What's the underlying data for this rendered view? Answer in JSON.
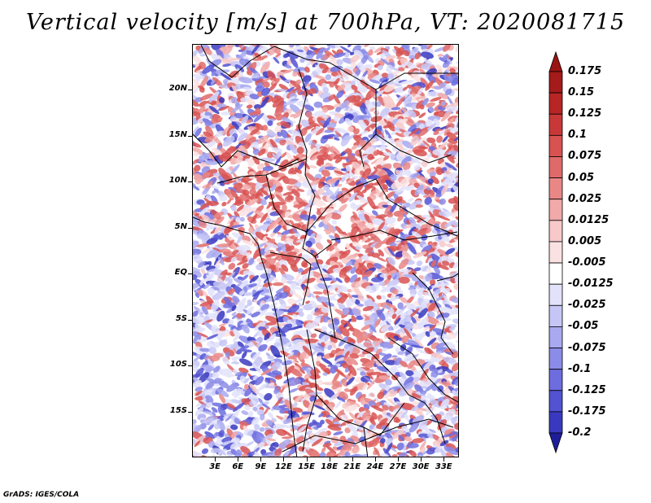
{
  "title": "Vertical velocity [m/s] at 700hPa, VT: 2020081715",
  "footer": "GrADS: IGES/COLA",
  "map": {
    "lon_range": [
      0,
      35
    ],
    "lat_range": [
      -20,
      25
    ],
    "y_ticks": [
      {
        "label": "20N",
        "lat": 20
      },
      {
        "label": "15N",
        "lat": 15
      },
      {
        "label": "10N",
        "lat": 10
      },
      {
        "label": "5N",
        "lat": 5
      },
      {
        "label": "EQ",
        "lat": 0
      },
      {
        "label": "5S",
        "lat": -5
      },
      {
        "label": "10S",
        "lat": -10
      },
      {
        "label": "15S",
        "lat": -15
      }
    ],
    "x_ticks": [
      {
        "label": "3E",
        "lon": 3
      },
      {
        "label": "6E",
        "lon": 6
      },
      {
        "label": "9E",
        "lon": 9
      },
      {
        "label": "12E",
        "lon": 12
      },
      {
        "label": "15E",
        "lon": 15
      },
      {
        "label": "18E",
        "lon": 18
      },
      {
        "label": "21E",
        "lon": 21
      },
      {
        "label": "24E",
        "lon": 24
      },
      {
        "label": "27E",
        "lon": 27
      },
      {
        "label": "30E",
        "lon": 30
      },
      {
        "label": "33E",
        "lon": 33
      }
    ]
  },
  "colorbar": {
    "levels": [
      {
        "label": "0.175",
        "color": "#a51a1a"
      },
      {
        "label": "0.15",
        "color": "#b82525"
      },
      {
        "label": "0.125",
        "color": "#c93838"
      },
      {
        "label": "0.1",
        "color": "#d85252"
      },
      {
        "label": "0.075",
        "color": "#e06a6a"
      },
      {
        "label": "0.05",
        "color": "#e98787"
      },
      {
        "label": "0.025",
        "color": "#f1a9a9"
      },
      {
        "label": "0.0125",
        "color": "#f7c9c9"
      },
      {
        "label": "0.005",
        "color": "#fbe2e2"
      },
      {
        "label": "-0.005",
        "color": "#ffffff"
      },
      {
        "label": "-0.0125",
        "color": "#e2e2fb"
      },
      {
        "label": "-0.025",
        "color": "#c6c6f6"
      },
      {
        "label": "-0.05",
        "color": "#a9a9f0"
      },
      {
        "label": "-0.075",
        "color": "#8b8be8"
      },
      {
        "label": "-0.1",
        "color": "#6d6ddf"
      },
      {
        "label": "-0.125",
        "color": "#5252d2"
      },
      {
        "label": "-0.175",
        "color": "#3939c0"
      },
      {
        "label": "-0.2",
        "color": "#2525aa"
      }
    ],
    "top_color": "#9a1414",
    "bottom_color": "#1e1e9a"
  }
}
